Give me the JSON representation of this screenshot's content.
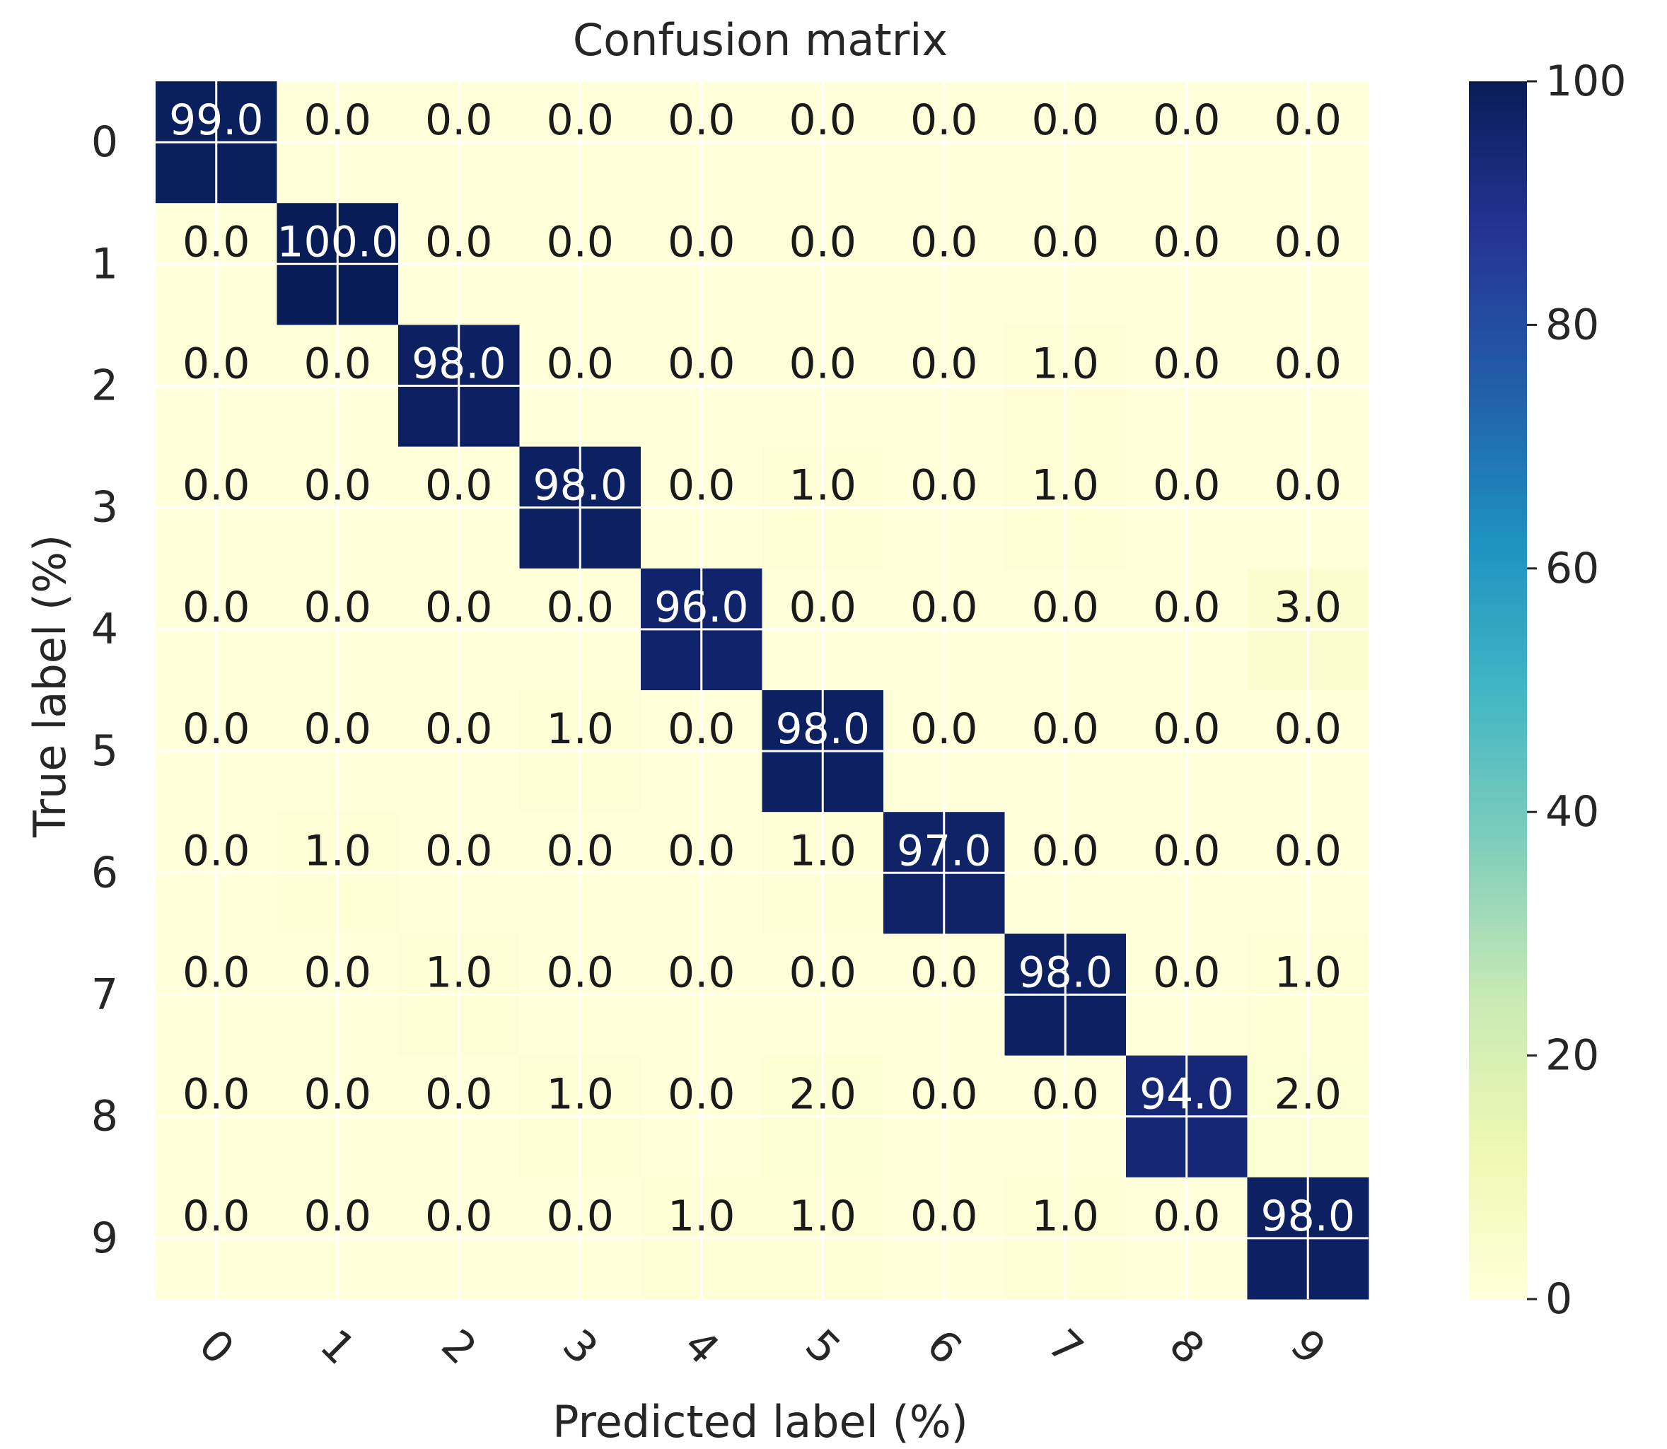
{
  "chart_data": {
    "type": "heatmap",
    "title": "Confusion matrix",
    "xlabel": "Predicted label (%)",
    "ylabel": "True label (%)",
    "x_categories": [
      "0",
      "1",
      "2",
      "3",
      "4",
      "5",
      "6",
      "7",
      "8",
      "9"
    ],
    "y_categories": [
      "0",
      "1",
      "2",
      "3",
      "4",
      "5",
      "6",
      "7",
      "8",
      "9"
    ],
    "values": [
      [
        99.0,
        0.0,
        0.0,
        0.0,
        0.0,
        0.0,
        0.0,
        0.0,
        0.0,
        0.0
      ],
      [
        0.0,
        100.0,
        0.0,
        0.0,
        0.0,
        0.0,
        0.0,
        0.0,
        0.0,
        0.0
      ],
      [
        0.0,
        0.0,
        98.0,
        0.0,
        0.0,
        0.0,
        0.0,
        1.0,
        0.0,
        0.0
      ],
      [
        0.0,
        0.0,
        0.0,
        98.0,
        0.0,
        1.0,
        0.0,
        1.0,
        0.0,
        0.0
      ],
      [
        0.0,
        0.0,
        0.0,
        0.0,
        96.0,
        0.0,
        0.0,
        0.0,
        0.0,
        3.0
      ],
      [
        0.0,
        0.0,
        0.0,
        1.0,
        0.0,
        98.0,
        0.0,
        0.0,
        0.0,
        0.0
      ],
      [
        0.0,
        1.0,
        0.0,
        0.0,
        0.0,
        1.0,
        97.0,
        0.0,
        0.0,
        0.0
      ],
      [
        0.0,
        0.0,
        1.0,
        0.0,
        0.0,
        0.0,
        0.0,
        98.0,
        0.0,
        1.0
      ],
      [
        0.0,
        0.0,
        0.0,
        1.0,
        0.0,
        2.0,
        0.0,
        0.0,
        94.0,
        2.0
      ],
      [
        0.0,
        0.0,
        0.0,
        0.0,
        1.0,
        1.0,
        0.0,
        1.0,
        0.0,
        98.0
      ]
    ],
    "colorbar": {
      "range": [
        0,
        100
      ],
      "ticks": [
        0,
        20,
        40,
        60,
        80,
        100
      ],
      "colormap": "YlGnBu",
      "colors": [
        "#ffffd9",
        "#edf8b1",
        "#c7e9b4",
        "#7fcdbb",
        "#41b6c4",
        "#1d91c0",
        "#225ea8",
        "#253494",
        "#081d58"
      ]
    },
    "grid": true
  }
}
